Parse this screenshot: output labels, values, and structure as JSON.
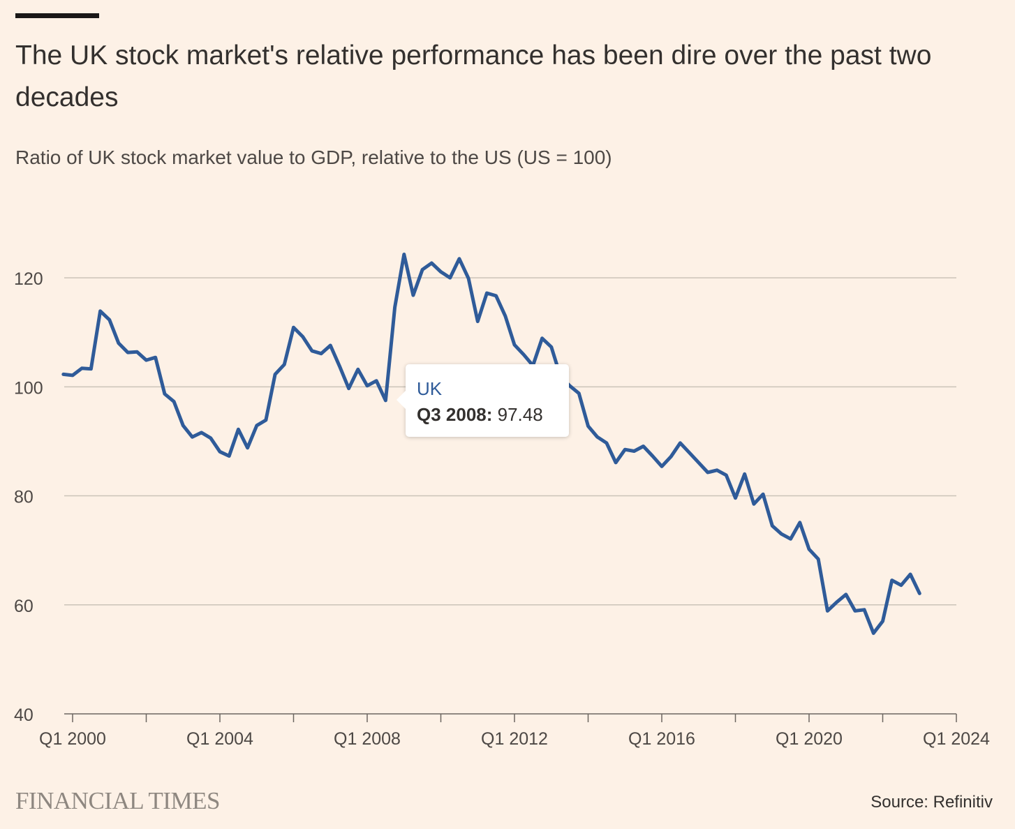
{
  "header": {
    "title": "The UK stock market's relative performance has been dire over the past two decades",
    "subtitle": "Ratio of UK stock market value to GDP, relative to the US (US = 100)"
  },
  "tooltip": {
    "series": "UK",
    "date": "Q3 2008:",
    "value": "97.48"
  },
  "footer": {
    "logo": "FINANCIAL TIMES",
    "source": "Source: Refinitiv"
  },
  "colors": {
    "background": "#fdf1e6",
    "line": "#2f5b99",
    "grid": "#cbc3b8",
    "axis": "#6b6560"
  },
  "chart_data": {
    "type": "line",
    "title": "The UK stock market's relative performance has been dire over the past two decades",
    "subtitle": "Ratio of UK stock market value to GDP, relative to the US (US = 100)",
    "xlabel": "",
    "ylabel": "",
    "grid": true,
    "ylim": [
      40,
      130
    ],
    "yticks": [
      40,
      60,
      80,
      100,
      120
    ],
    "x_ticks": [
      "Q1 2000",
      "Q1 2004",
      "Q1 2008",
      "Q1 2012",
      "Q1 2016",
      "Q1 2020",
      "Q1 2024"
    ],
    "x_start": "Q1 2000",
    "x_end": "Q1 2024",
    "start_year": 2000,
    "end_year": 2024,
    "x": [
      "Q4 1999",
      "Q1 2000",
      "Q2 2000",
      "Q3 2000",
      "Q4 2000",
      "Q1 2001",
      "Q2 2001",
      "Q3 2001",
      "Q4 2001",
      "Q1 2002",
      "Q2 2002",
      "Q3 2002",
      "Q4 2002",
      "Q1 2003",
      "Q2 2003",
      "Q3 2003",
      "Q4 2003",
      "Q1 2004",
      "Q2 2004",
      "Q3 2004",
      "Q4 2004",
      "Q1 2005",
      "Q2 2005",
      "Q3 2005",
      "Q4 2005",
      "Q1 2006",
      "Q2 2006",
      "Q3 2006",
      "Q4 2006",
      "Q1 2007",
      "Q2 2007",
      "Q3 2007",
      "Q4 2007",
      "Q1 2008",
      "Q2 2008",
      "Q3 2008",
      "Q4 2008",
      "Q1 2009",
      "Q2 2009",
      "Q3 2009",
      "Q4 2009",
      "Q1 2010",
      "Q2 2010",
      "Q3 2010",
      "Q4 2010",
      "Q1 2011",
      "Q2 2011",
      "Q3 2011",
      "Q4 2011",
      "Q1 2012",
      "Q2 2012",
      "Q3 2012",
      "Q4 2012",
      "Q1 2013",
      "Q2 2013",
      "Q3 2013",
      "Q4 2013",
      "Q1 2014",
      "Q2 2014",
      "Q3 2014",
      "Q4 2014",
      "Q1 2015",
      "Q2 2015",
      "Q3 2015",
      "Q4 2015",
      "Q1 2016",
      "Q2 2016",
      "Q3 2016",
      "Q4 2016",
      "Q1 2017",
      "Q2 2017",
      "Q3 2017",
      "Q4 2017",
      "Q1 2018",
      "Q2 2018",
      "Q3 2018",
      "Q4 2018",
      "Q1 2019",
      "Q2 2019",
      "Q3 2019",
      "Q4 2019",
      "Q1 2020",
      "Q2 2020",
      "Q3 2020",
      "Q4 2020",
      "Q1 2021",
      "Q2 2021",
      "Q3 2021",
      "Q4 2021",
      "Q1 2022",
      "Q2 2022",
      "Q3 2022",
      "Q4 2022",
      "Q1 2023"
    ],
    "series": [
      {
        "name": "UK",
        "values": [
          102.3,
          102.1,
          103.4,
          103.3,
          113.9,
          112.3,
          108.0,
          106.3,
          106.4,
          104.9,
          105.4,
          98.7,
          97.3,
          92.9,
          90.8,
          91.6,
          90.6,
          88.1,
          87.3,
          92.2,
          88.8,
          92.9,
          93.9,
          102.3,
          104.1,
          110.9,
          109.2,
          106.6,
          106.1,
          107.6,
          103.8,
          99.7,
          103.2,
          100.2,
          101.1,
          97.5,
          114.6,
          124.3,
          116.8,
          121.5,
          122.7,
          121.1,
          120.0,
          123.5,
          119.9,
          112.0,
          117.2,
          116.7,
          113.0,
          107.7,
          105.9,
          103.9,
          108.9,
          107.3,
          101.9,
          100.2,
          98.8,
          92.8,
          90.8,
          89.7,
          86.1,
          88.5,
          88.2,
          89.1,
          87.3,
          85.4,
          87.2,
          89.7,
          87.9,
          86.1,
          84.3,
          84.7,
          83.8,
          79.6,
          84.0,
          78.5,
          80.3,
          74.5,
          73.0,
          72.1,
          75.1,
          70.2,
          68.4,
          58.9,
          60.5,
          61.9,
          58.9,
          59.1,
          54.8,
          57.0,
          64.5,
          63.6,
          65.6,
          62.1
        ]
      }
    ],
    "highlight": {
      "x": "Q3 2008",
      "value": 97.48
    }
  }
}
